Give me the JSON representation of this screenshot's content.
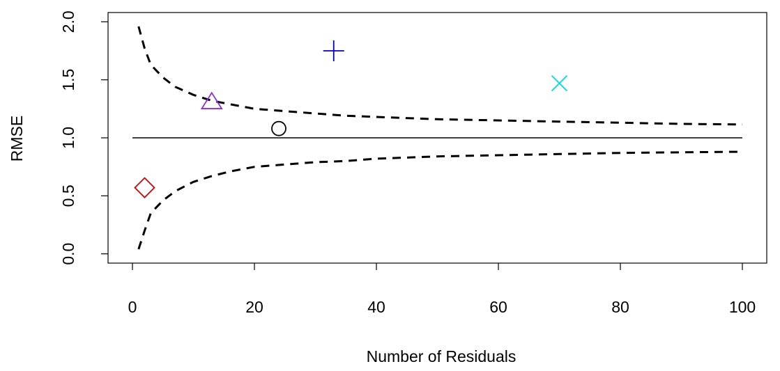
{
  "chart_data": {
    "type": "scatter",
    "title": "",
    "xlabel": "Number of Residuals",
    "ylabel": "RMSE",
    "xlim": [
      -4,
      104
    ],
    "ylim": [
      -0.08,
      2.08
    ],
    "x_ticks": [
      {
        "value": 0,
        "label": "0"
      },
      {
        "value": 20,
        "label": "20"
      },
      {
        "value": 40,
        "label": "40"
      },
      {
        "value": 60,
        "label": "60"
      },
      {
        "value": 80,
        "label": "80"
      },
      {
        "value": 100,
        "label": "100"
      }
    ],
    "y_ticks": [
      {
        "value": 0.0,
        "label": "0.0"
      },
      {
        "value": 0.5,
        "label": "0.5"
      },
      {
        "value": 1.0,
        "label": "1.0"
      },
      {
        "value": 1.5,
        "label": "1.5"
      },
      {
        "value": 2.0,
        "label": "2.0"
      }
    ],
    "grid": false,
    "legend": "none",
    "reference_line": {
      "y": 1.0,
      "x": [
        0,
        100
      ],
      "style": "solid",
      "color": "#000000"
    },
    "bounds": {
      "style": "dashed",
      "color": "#000000",
      "upper": [
        [
          1,
          1.96
        ],
        [
          2,
          1.77
        ],
        [
          3,
          1.63
        ],
        [
          5,
          1.52
        ],
        [
          7,
          1.44
        ],
        [
          10,
          1.37
        ],
        [
          13,
          1.32
        ],
        [
          16,
          1.29
        ],
        [
          20,
          1.25
        ],
        [
          25,
          1.23
        ],
        [
          30,
          1.21
        ],
        [
          35,
          1.19
        ],
        [
          40,
          1.18
        ],
        [
          50,
          1.16
        ],
        [
          60,
          1.15
        ],
        [
          70,
          1.14
        ],
        [
          80,
          1.13
        ],
        [
          90,
          1.12
        ],
        [
          100,
          1.115
        ]
      ],
      "lower": [
        [
          1,
          0.04
        ],
        [
          2,
          0.2
        ],
        [
          3,
          0.35
        ],
        [
          5,
          0.46
        ],
        [
          7,
          0.54
        ],
        [
          10,
          0.62
        ],
        [
          13,
          0.67
        ],
        [
          16,
          0.71
        ],
        [
          20,
          0.75
        ],
        [
          25,
          0.77
        ],
        [
          30,
          0.79
        ],
        [
          35,
          0.8
        ],
        [
          40,
          0.82
        ],
        [
          50,
          0.84
        ],
        [
          60,
          0.85
        ],
        [
          70,
          0.86
        ],
        [
          80,
          0.87
        ],
        [
          90,
          0.875
        ],
        [
          100,
          0.88
        ]
      ]
    },
    "points": [
      {
        "x": 2,
        "y": 0.57,
        "marker": "diamond",
        "color": "#dd0000"
      },
      {
        "x": 13,
        "y": 1.31,
        "marker": "triangle",
        "color": "#8a2be2"
      },
      {
        "x": 24,
        "y": 1.08,
        "marker": "circle",
        "color": "#000000"
      },
      {
        "x": 33,
        "y": 1.75,
        "marker": "plus",
        "color": "#0000cc"
      },
      {
        "x": 70,
        "y": 1.47,
        "marker": "cross",
        "color": "#00dddd"
      }
    ]
  }
}
